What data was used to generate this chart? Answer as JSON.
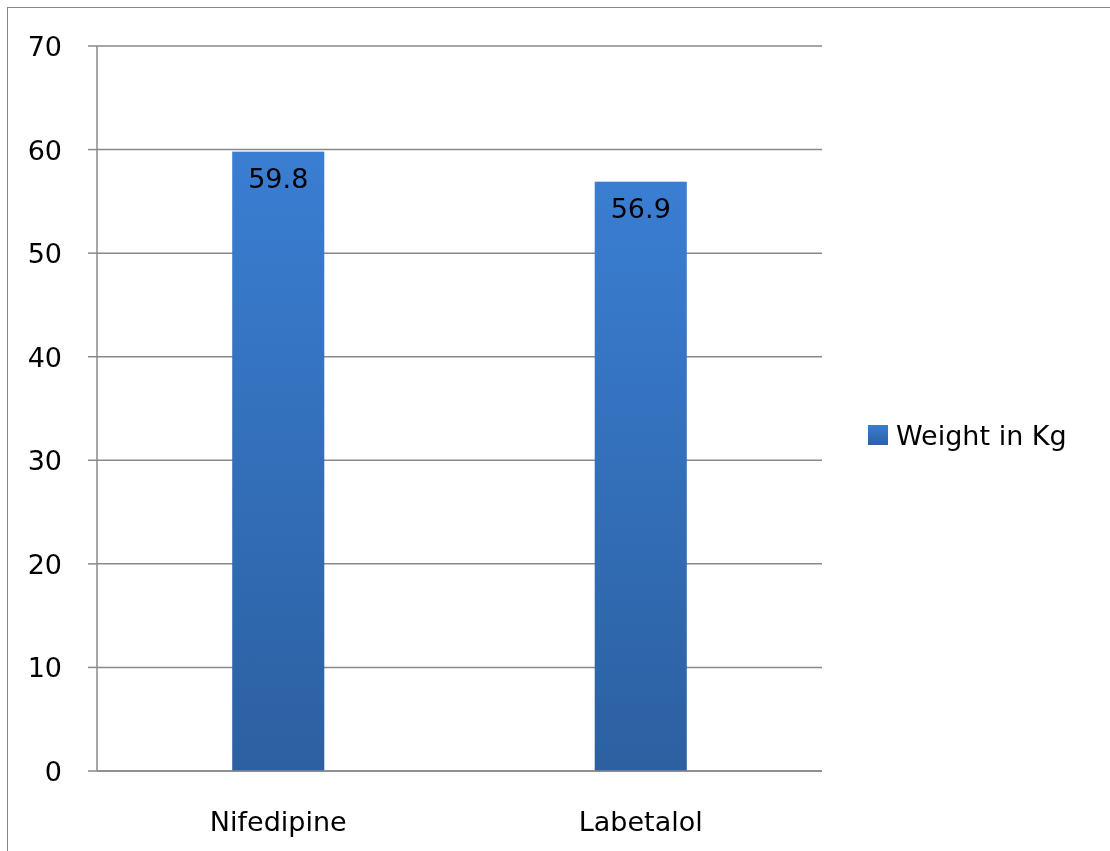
{
  "chart_data": {
    "type": "bar",
    "categories": [
      "Nifedipine",
      "Labetalol"
    ],
    "series": [
      {
        "name": "Weight in Kg",
        "color": "#3471bd",
        "values": [
          59.8,
          56.9
        ]
      }
    ],
    "ylim": [
      0,
      70
    ],
    "yticks": [
      0,
      10,
      20,
      30,
      40,
      50,
      60,
      70
    ],
    "grid": "y",
    "legend": "right",
    "data_labels": true
  }
}
